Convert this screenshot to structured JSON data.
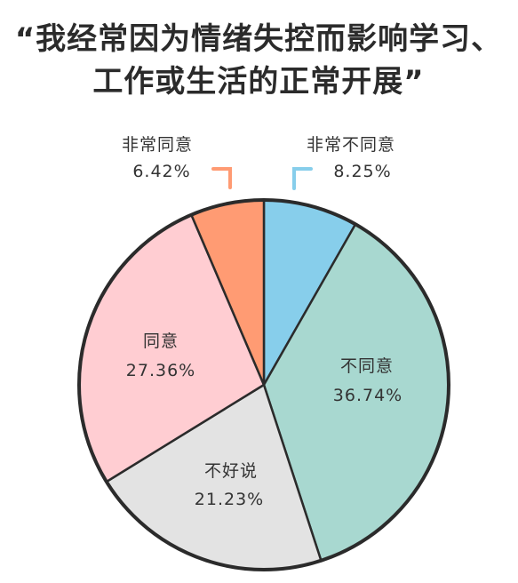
{
  "title_lines": [
    "“我经常因为情绪失控而影响学习、",
    "工作或生活的正常开展”"
  ],
  "chart_data": {
    "type": "pie",
    "title": "“我经常因为情绪失控而影响学习、工作或生活的正常开展”",
    "start_angle_deg": 0,
    "slices": [
      {
        "name": "非常不同意",
        "value": 8.25,
        "value_label": "8.25%",
        "color": "#87CEEB"
      },
      {
        "name": "不同意",
        "value": 36.74,
        "value_label": "36.74%",
        "color": "#A8D8D0"
      },
      {
        "name": "不好说",
        "value": 21.23,
        "value_label": "21.23%",
        "color": "#E3E3E3"
      },
      {
        "name": "同意",
        "value": 27.36,
        "value_label": "27.36%",
        "color": "#FFCDD2"
      },
      {
        "name": "非常同意",
        "value": 6.42,
        "value_label": "6.42%",
        "color": "#FF9B73"
      }
    ]
  }
}
